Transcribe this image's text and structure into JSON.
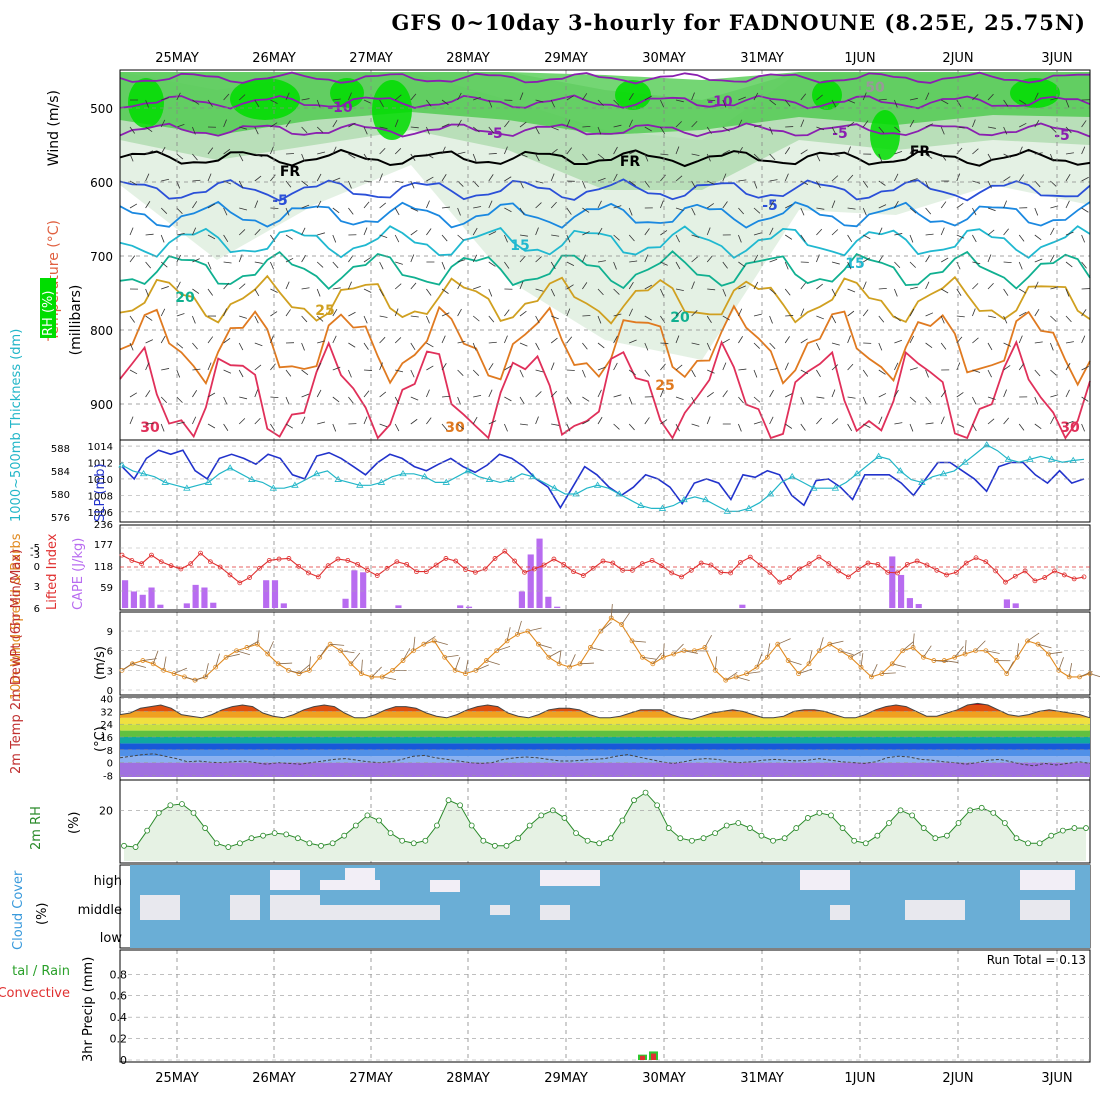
{
  "title": "GFS 0~10day 3-hourly for FADNOUNE (8.25E, 25.75N)",
  "dates": [
    "25MAY",
    "26MAY",
    "27MAY",
    "28MAY",
    "29MAY",
    "30MAY",
    "31MAY",
    "1JUN",
    "2JUN",
    "3JUN"
  ],
  "colors": {
    "green": "#00dd00",
    "purple": "#b86cf0",
    "blue": "#2233cc",
    "cyan": "#22b6c8",
    "red": "#e03030",
    "orange": "#e08a20",
    "cloud": "#6aaed6",
    "cloudlight": "#f2eef6"
  },
  "chart_data": [
    {
      "type": "heatmap",
      "name": "upper",
      "labels": {
        "wind": "Wind (m/s)",
        "temp": "Temperature (°C)",
        "millibars": "(millibars)",
        "rh": "RH (%)"
      },
      "yticks": [
        500,
        600,
        700,
        800,
        900
      ],
      "ylim": [
        1000,
        450
      ],
      "contour_labels": [
        "-10",
        "-10",
        "-5",
        "-5",
        "-5",
        "FR",
        "FR",
        "FR",
        "-5",
        "-5",
        "15",
        "15",
        "20",
        "20",
        "25",
        "25",
        "30",
        "30",
        "30",
        "50"
      ],
      "legend": [
        "RH (%)"
      ]
    },
    {
      "type": "line",
      "name": "slp",
      "labels": {
        "left": "1000~500mb Thickness (dm)",
        "right": "SLP (mb)"
      },
      "yticks_left": [
        576,
        580,
        584,
        588
      ],
      "yticks_right": [
        1006,
        1008,
        1010,
        1012,
        1014
      ],
      "series": [
        {
          "name": "SLP (mb)",
          "values": [
            1011.5,
            1010,
            1012.5,
            1013.5,
            1013,
            1013.5,
            1011,
            1010,
            1012.5,
            1013,
            1012.5,
            1011.8,
            1013,
            1012.5,
            1010.5,
            1010,
            1012.8,
            1013.2,
            1012.5,
            1011.5,
            1010.5,
            1012,
            1013,
            1012.5,
            1011.5,
            1011,
            1011.8,
            1012.5,
            1011.5,
            1010.8,
            1011.7,
            1013,
            1012.5,
            1011.5,
            1010,
            1009,
            1006.5,
            1009,
            1011.5,
            1010.5,
            1009,
            1008,
            1009,
            1010.5,
            1010,
            1009,
            1007,
            1009.5,
            1010,
            1009.5,
            1007.5,
            1010.5,
            1010.2,
            1011,
            1010.5,
            1008,
            1006.8,
            1009.8,
            1010,
            1009,
            1007.5,
            1010.5,
            1010.5,
            1010.5,
            1009.5,
            1008,
            1010,
            1012,
            1012,
            1011,
            1010,
            1008.5,
            1011.5,
            1012,
            1012,
            1010.5,
            1009.5,
            1011,
            1009.5,
            1010
          ]
        },
        {
          "name": "1000~500mb Thickness (dm)",
          "values": [
            585,
            584,
            583.5,
            583,
            582,
            581.5,
            581,
            581.5,
            582,
            583.5,
            584.5,
            583.5,
            582.5,
            582,
            581,
            581,
            581.5,
            582.5,
            583.5,
            584,
            582.5,
            582,
            581.5,
            581.5,
            582,
            583,
            583.5,
            583.5,
            583,
            582,
            582,
            583,
            584,
            583,
            582.5,
            582,
            582.5,
            583.5,
            583,
            582,
            581,
            580,
            580,
            581,
            581.5,
            581,
            580,
            579,
            578,
            577.5,
            577.5,
            578,
            579,
            579.5,
            579,
            578,
            577,
            577,
            577.5,
            578.5,
            580,
            582,
            583,
            582,
            581,
            581,
            581,
            582,
            583.5,
            585,
            586.5,
            586,
            584,
            582.5,
            582,
            583,
            583.5,
            584,
            585.5,
            587,
            588.5,
            587.5,
            586,
            585.5,
            586,
            586.5,
            586,
            585.5,
            585.8,
            586
          ]
        }
      ]
    },
    {
      "type": "bar",
      "name": "cape",
      "labels": {
        "left": "Lifted Index",
        "right": "CAPE (J/kg)"
      },
      "yticks_li": [
        "-5",
        "-3",
        "0",
        "3",
        "6"
      ],
      "yticks_cape": [
        "236",
        "177",
        "118",
        "59"
      ],
      "series": [
        {
          "name": "CAPE (J/kg)",
          "values": [
            84,
            50,
            40,
            62,
            10,
            0,
            0,
            14,
            70,
            62,
            16,
            0,
            0,
            0,
            0,
            0,
            84,
            84,
            14,
            0,
            0,
            0,
            0,
            0,
            0,
            28,
            114,
            108,
            0,
            0,
            0,
            8,
            0,
            0,
            0,
            0,
            0,
            0,
            8,
            4,
            0,
            0,
            0,
            0,
            0,
            50,
            162,
            210,
            34,
            4,
            0,
            0,
            0,
            0,
            0,
            0,
            0,
            0,
            0,
            0,
            0,
            0,
            0,
            0,
            0,
            0,
            0,
            0,
            0,
            0,
            10,
            0,
            0,
            0,
            0,
            0,
            0,
            0,
            0,
            0,
            0,
            0,
            0,
            0,
            0,
            0,
            0,
            156,
            100,
            30,
            12,
            0,
            0,
            0,
            0,
            0,
            0,
            0,
            0,
            0,
            26,
            14,
            0,
            0,
            0,
            0,
            0,
            0,
            0,
            0
          ]
        },
        {
          "name": "Lifted Index",
          "values": [
            -1.8,
            -1,
            -0.5,
            -1.8,
            -0.8,
            -0.2,
            0.3,
            -0.5,
            -2.1,
            -0.8,
            0,
            1.2,
            2.4,
            1.6,
            0.2,
            -1,
            -1.2,
            -1.3,
            -0.1,
            0.9,
            1.5,
            -0.2,
            -1.2,
            -1,
            -0.4,
            0.5,
            1.3,
            0.2,
            -0.8,
            -0.4,
            0.7,
            0.7,
            -0.3,
            -1.3,
            -0.9,
            0.4,
            0.8,
            0.3,
            -1.3,
            -2.4,
            -0.9,
            0.8,
            0.3,
            -0.3,
            -1.2,
            -0.4,
            0.7,
            1.3,
            0.2,
            -0.9,
            -0.6,
            0.5,
            0.5,
            -0.5,
            -1,
            -0.2,
            0.9,
            1.5,
            0.5,
            -0.6,
            -0.3,
            0.8,
            0.9,
            -0.7,
            -1.5,
            -0.3,
            0.8,
            2.3,
            1.6,
            0.3,
            -0.5,
            -1.5,
            -0.5,
            0.6,
            1.5,
            0.4,
            -0.6,
            -0.4,
            0.8,
            0.9,
            -0.4,
            -0.9,
            -0.3,
            0.5,
            1.2,
            0.8,
            -0.6,
            -1.4,
            -0.8,
            0.6,
            2.3,
            1.4,
            0.6,
            2.1,
            1.6,
            0.6,
            1.2,
            1.8,
            1.5
          ]
        }
      ]
    },
    {
      "type": "line",
      "name": "wind",
      "labels": {
        "left": "10m Wind Speed & Barbs",
        "right": "(m/s)"
      },
      "yticks": [
        0,
        3,
        6,
        9
      ],
      "series": [
        {
          "name": "10m Wind Speed",
          "values": [
            3,
            4,
            4.5,
            4,
            3,
            2.5,
            2,
            1.5,
            2,
            3.5,
            5,
            6,
            6.5,
            7,
            5.5,
            4,
            3,
            2.5,
            3,
            5,
            7,
            6,
            4,
            2.5,
            2,
            2,
            3,
            4.5,
            6,
            7,
            7.5,
            5,
            3,
            2.5,
            3,
            4.5,
            6,
            7.5,
            8.5,
            9,
            7,
            5,
            4,
            3.5,
            4,
            6.5,
            9,
            11,
            10,
            7.5,
            5,
            4,
            5,
            5.5,
            6,
            6,
            6.5,
            3,
            1.5,
            2,
            2.5,
            3.5,
            5,
            7,
            4.5,
            2.5,
            4,
            6,
            7,
            6,
            5,
            3.5,
            2,
            2.5,
            4,
            6,
            6.5,
            5,
            4.5,
            4.5,
            5,
            5.5,
            6,
            6,
            4.5,
            2.5,
            5,
            7.5,
            7,
            5.5,
            3,
            2,
            2,
            2.5
          ]
        }
      ]
    },
    {
      "type": "area",
      "name": "temp",
      "labels": {
        "left": "2m Temp 2m DewPt (6hr Min/Max)",
        "right": "(°C)"
      },
      "yticks": [
        -8,
        0,
        8,
        16,
        24,
        32,
        40
      ],
      "series": [
        {
          "name": "2m Temp",
          "values": [
            30,
            31,
            34,
            35,
            36,
            34,
            30,
            29,
            28,
            30,
            33,
            35,
            36,
            35,
            31,
            29,
            28,
            30,
            33,
            35,
            36,
            35,
            31,
            28,
            28,
            30,
            33,
            35,
            35,
            34,
            31,
            29,
            28,
            30,
            33,
            35,
            36,
            35,
            31,
            29,
            28,
            30,
            33,
            34,
            34,
            33,
            30,
            28,
            28,
            29,
            31,
            33,
            33,
            33,
            30,
            28,
            27,
            29,
            31,
            32,
            33,
            32,
            30,
            28,
            28,
            29,
            32,
            33,
            33,
            32,
            30,
            28,
            28,
            30,
            33,
            35,
            36,
            35,
            32,
            29,
            29,
            31,
            33,
            36,
            37,
            36,
            33,
            30,
            29,
            30,
            32,
            33,
            32,
            31,
            30,
            28
          ]
        },
        {
          "name": "2m DewPt",
          "values": [
            3,
            4,
            5,
            5.5,
            4,
            2.5,
            0.5,
            1,
            0.2,
            0,
            0.5,
            1,
            0,
            -1,
            0,
            -0.5,
            -1,
            0,
            1,
            2,
            2.5,
            1.5,
            0.5,
            0,
            0.5,
            2,
            4,
            4.5,
            3,
            2,
            1,
            0,
            -0.5,
            0,
            2,
            3,
            3.5,
            3,
            2,
            1,
            1,
            1.5,
            2,
            2.5,
            4,
            5,
            3.5,
            2,
            0.5,
            -0.5,
            0.5,
            2,
            2.5,
            2,
            0.5,
            0,
            0.5,
            1.5,
            2,
            1.5,
            1,
            1.5,
            2.5,
            1.5,
            0.5,
            0,
            -0.5,
            0.5,
            3,
            4,
            3.5,
            2,
            1.5,
            0.5,
            0,
            -1,
            0,
            1.5,
            2,
            0.5,
            -1,
            -2,
            -0.5,
            -1.5,
            -0.5,
            0.5,
            -0.5
          ]
        }
      ]
    },
    {
      "type": "area",
      "name": "rh",
      "labels": {
        "left": "2m RH",
        "right": "(%)"
      },
      "yticks": [
        20
      ],
      "series": [
        {
          "name": "2m RH",
          "values": [
            6,
            5.5,
            12,
            19,
            22,
            22.5,
            19,
            13,
            7,
            5.5,
            7,
            9,
            10,
            11,
            10.5,
            9,
            7,
            6,
            7,
            10,
            14,
            18,
            16,
            11,
            8,
            7,
            8,
            14,
            24,
            22,
            14,
            8,
            6,
            6,
            9,
            14,
            18,
            20,
            17,
            11,
            8,
            7,
            9,
            16,
            24,
            27,
            22,
            13,
            9,
            8,
            9,
            11,
            14,
            15,
            13,
            10,
            8,
            9,
            13,
            17,
            19,
            18,
            13,
            8,
            7,
            10,
            15,
            20,
            18,
            13,
            9,
            10,
            15,
            20,
            21,
            19,
            15,
            9,
            7,
            7,
            10,
            12,
            13,
            13
          ]
        }
      ]
    },
    {
      "type": "heatmap",
      "name": "cloud",
      "labels": {
        "left": "Cloud Cover",
        "right": "(%)",
        "levels": [
          "high",
          "middle",
          "low"
        ]
      }
    },
    {
      "type": "bar",
      "name": "precip",
      "labels": {
        "left": "Total / Rain Convective",
        "right": "3hr Precip (mm)",
        "run_total": "Run Total = 0.13"
      },
      "yticks": [
        "0",
        "0.2",
        "0.4",
        "0.6",
        "0.8"
      ],
      "ylim": [
        0,
        0.98
      ],
      "series": [
        {
          "name": "Total",
          "values": [
            0.05,
            0.08
          ]
        },
        {
          "name": "Convective",
          "values": [
            0.04,
            0.06
          ]
        }
      ]
    }
  ]
}
